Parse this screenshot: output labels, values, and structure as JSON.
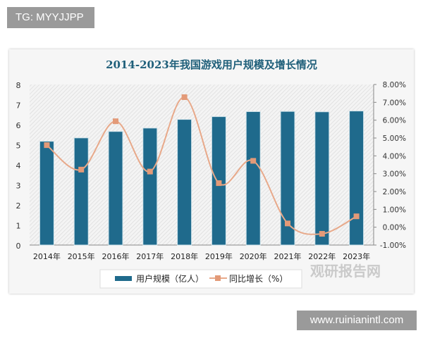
{
  "watermarks": {
    "top_left": "TG: MYYJJPP",
    "bottom_right": "www.ruinianintl.com",
    "logo": "观研报告网 chinabaogao.com"
  },
  "chart_data": {
    "type": "bar",
    "title": "2014-2023年我国游戏用户规模及增长情况",
    "categories": [
      "2014年",
      "2015年",
      "2016年",
      "2017年",
      "2018年",
      "2019年",
      "2020年",
      "2021年",
      "2022年",
      "2023年"
    ],
    "series": [
      {
        "name": "用户规模（亿人）",
        "type": "bar",
        "axis": "left",
        "color": "#1f6a8c",
        "values": [
          5.17,
          5.34,
          5.66,
          5.83,
          6.26,
          6.4,
          6.65,
          6.66,
          6.64,
          6.68
        ]
      },
      {
        "name": "同比增长（%）",
        "type": "line",
        "axis": "right",
        "color": "#e8a98a",
        "values": [
          4.6,
          3.23,
          5.94,
          3.12,
          7.29,
          2.47,
          3.72,
          0.21,
          -0.37,
          0.61
        ]
      }
    ],
    "ylim": [
      0,
      8
    ],
    "yticks": [
      "0",
      "1",
      "2",
      "3",
      "4",
      "5",
      "6",
      "7",
      "8"
    ],
    "y2lim": [
      -1,
      8
    ],
    "y2ticks": [
      "-1.00%",
      "0.00%",
      "1.00%",
      "2.00%",
      "3.00%",
      "4.00%",
      "5.00%",
      "6.00%",
      "7.00%",
      "8.00%"
    ],
    "legend": "bottom"
  }
}
